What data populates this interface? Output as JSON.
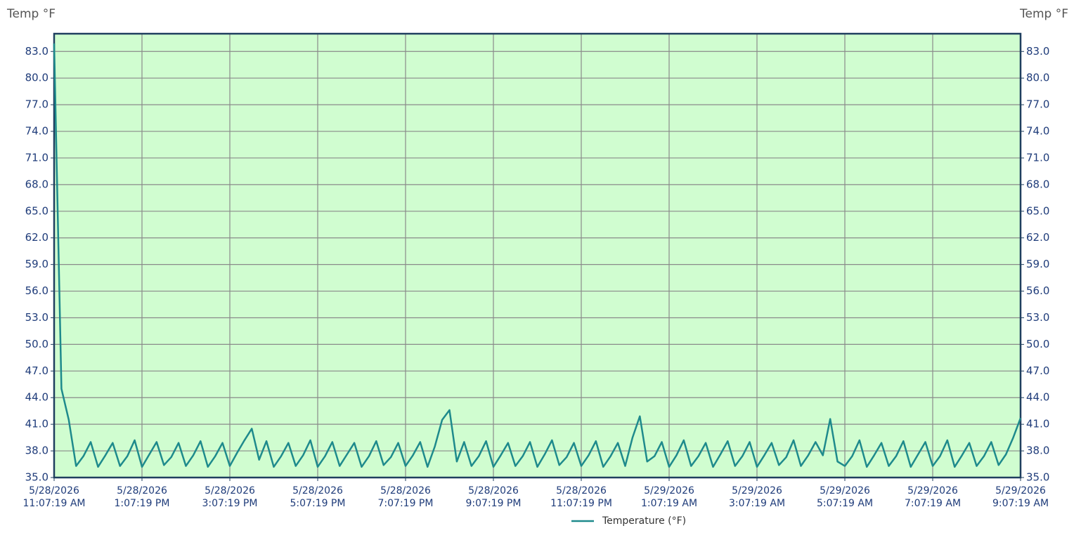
{
  "chart_data": {
    "type": "line",
    "ylabel": "Temp °F",
    "y2label": "Temp °F",
    "x": [
      "2026-05-28T11:07:19",
      "2026-05-28T11:17:19",
      "2026-05-28T11:27:19",
      "2026-05-28T11:37:19",
      "2026-05-28T11:47:19",
      "2026-05-28T11:57:19",
      "2026-05-28T12:07:19",
      "2026-05-28T12:17:19",
      "2026-05-28T12:27:19",
      "2026-05-28T12:37:19",
      "2026-05-28T12:47:19",
      "2026-05-28T12:57:19",
      "2026-05-28T13:07:19",
      "2026-05-28T13:17:19",
      "2026-05-28T13:27:19",
      "2026-05-28T13:37:19",
      "2026-05-28T13:47:19",
      "2026-05-28T13:57:19",
      "2026-05-28T14:07:19",
      "2026-05-28T14:17:19",
      "2026-05-28T14:27:19",
      "2026-05-28T14:37:19",
      "2026-05-28T14:47:19",
      "2026-05-28T14:57:19",
      "2026-05-28T15:07:19",
      "2026-05-28T15:17:19",
      "2026-05-28T15:27:19",
      "2026-05-28T15:37:19",
      "2026-05-28T15:47:19",
      "2026-05-28T15:57:19",
      "2026-05-28T16:07:19",
      "2026-05-28T16:17:19",
      "2026-05-28T16:27:19",
      "2026-05-28T16:37:19",
      "2026-05-28T16:47:19",
      "2026-05-28T16:57:19",
      "2026-05-28T17:07:19",
      "2026-05-28T17:17:19",
      "2026-05-28T17:27:19",
      "2026-05-28T17:37:19",
      "2026-05-28T17:47:19",
      "2026-05-28T17:57:19",
      "2026-05-28T18:07:19",
      "2026-05-28T18:17:19",
      "2026-05-28T18:27:19",
      "2026-05-28T18:37:19",
      "2026-05-28T18:47:19",
      "2026-05-28T18:57:19",
      "2026-05-28T19:07:19",
      "2026-05-28T19:17:19",
      "2026-05-28T19:27:19",
      "2026-05-28T19:37:19",
      "2026-05-28T19:47:19",
      "2026-05-28T19:57:19",
      "2026-05-28T20:07:19",
      "2026-05-28T20:17:19",
      "2026-05-28T20:27:19",
      "2026-05-28T20:37:19",
      "2026-05-28T20:47:19",
      "2026-05-28T20:57:19",
      "2026-05-28T21:07:19",
      "2026-05-28T21:17:19",
      "2026-05-28T21:27:19",
      "2026-05-28T21:37:19",
      "2026-05-28T21:47:19",
      "2026-05-28T21:57:19",
      "2026-05-28T22:07:19",
      "2026-05-28T22:17:19",
      "2026-05-28T22:27:19",
      "2026-05-28T22:37:19",
      "2026-05-28T22:47:19",
      "2026-05-28T22:57:19",
      "2026-05-28T23:07:19",
      "2026-05-28T23:17:19",
      "2026-05-28T23:27:19",
      "2026-05-28T23:37:19",
      "2026-05-28T23:47:19",
      "2026-05-28T23:57:19",
      "2026-05-29T00:07:19",
      "2026-05-29T00:17:19",
      "2026-05-29T00:27:19",
      "2026-05-29T00:37:19",
      "2026-05-29T00:47:19",
      "2026-05-29T00:57:19",
      "2026-05-29T01:07:19",
      "2026-05-29T01:17:19",
      "2026-05-29T01:27:19",
      "2026-05-29T01:37:19",
      "2026-05-29T01:47:19",
      "2026-05-29T01:57:19",
      "2026-05-29T02:07:19",
      "2026-05-29T02:17:19",
      "2026-05-29T02:27:19",
      "2026-05-29T02:37:19",
      "2026-05-29T02:47:19",
      "2026-05-29T02:57:19",
      "2026-05-29T03:07:19",
      "2026-05-29T03:17:19",
      "2026-05-29T03:27:19",
      "2026-05-29T03:37:19",
      "2026-05-29T03:47:19",
      "2026-05-29T03:57:19",
      "2026-05-29T04:07:19",
      "2026-05-29T04:17:19",
      "2026-05-29T04:27:19",
      "2026-05-29T04:37:19",
      "2026-05-29T04:47:19",
      "2026-05-29T04:57:19",
      "2026-05-29T05:07:19",
      "2026-05-29T05:17:19",
      "2026-05-29T05:27:19",
      "2026-05-29T05:37:19",
      "2026-05-29T05:47:19",
      "2026-05-29T05:57:19",
      "2026-05-29T06:07:19",
      "2026-05-29T06:17:19",
      "2026-05-29T06:27:19",
      "2026-05-29T06:37:19",
      "2026-05-29T06:47:19",
      "2026-05-29T06:57:19",
      "2026-05-29T07:07:19",
      "2026-05-29T07:17:19",
      "2026-05-29T07:27:19",
      "2026-05-29T07:37:19",
      "2026-05-29T07:47:19",
      "2026-05-29T07:57:19",
      "2026-05-29T08:07:19",
      "2026-05-29T08:17:19",
      "2026-05-29T08:27:19",
      "2026-05-29T08:37:19",
      "2026-05-29T08:47:19",
      "2026-05-29T08:57:19",
      "2026-05-29T09:07:19"
    ],
    "series": [
      {
        "name": "Temperature (°F)",
        "color": "#1e8a8c",
        "values": [
          83.9,
          45.0,
          41.5,
          36.3,
          37.4,
          39.0,
          36.2,
          37.5,
          38.9,
          36.3,
          37.4,
          39.2,
          36.2,
          37.6,
          39.0,
          36.4,
          37.3,
          38.9,
          36.3,
          37.5,
          39.1,
          36.2,
          37.4,
          38.9,
          36.3,
          37.8,
          39.2,
          40.5,
          37.0,
          39.1,
          36.2,
          37.4,
          38.9,
          36.3,
          37.5,
          39.2,
          36.2,
          37.4,
          39.0,
          36.3,
          37.6,
          38.9,
          36.2,
          37.4,
          39.1,
          36.4,
          37.3,
          38.9,
          36.3,
          37.5,
          39.0,
          36.2,
          38.5,
          41.5,
          42.6,
          36.8,
          39.0,
          36.3,
          37.4,
          39.1,
          36.2,
          37.5,
          38.9,
          36.3,
          37.4,
          39.0,
          36.2,
          37.6,
          39.2,
          36.4,
          37.3,
          38.9,
          36.3,
          37.5,
          39.1,
          36.2,
          37.4,
          38.9,
          36.3,
          39.5,
          41.9,
          36.8,
          37.4,
          39.0,
          36.2,
          37.5,
          39.2,
          36.3,
          37.4,
          38.9,
          36.2,
          37.6,
          39.1,
          36.3,
          37.4,
          39.0,
          36.2,
          37.5,
          38.9,
          36.4,
          37.3,
          39.2,
          36.3,
          37.5,
          39.0,
          37.5,
          41.6,
          36.8,
          36.3,
          37.4,
          39.2,
          36.2,
          37.5,
          38.9,
          36.3,
          37.4,
          39.1,
          36.2,
          37.6,
          39.0,
          36.3,
          37.4,
          39.2,
          36.2,
          37.5,
          38.9,
          36.3,
          37.4,
          39.0,
          36.4,
          37.6,
          39.5,
          41.7
        ]
      }
    ],
    "xlim": [
      "2026-05-28T11:07:19",
      "2026-05-29T09:07:19"
    ],
    "xticks": [
      {
        "value": "2026-05-28T11:07:19",
        "label": [
          "5/28/2026",
          "11:07:19 AM"
        ]
      },
      {
        "value": "2026-05-28T13:07:19",
        "label": [
          "5/28/2026",
          "1:07:19 PM"
        ]
      },
      {
        "value": "2026-05-28T15:07:19",
        "label": [
          "5/28/2026",
          "3:07:19 PM"
        ]
      },
      {
        "value": "2026-05-28T17:07:19",
        "label": [
          "5/28/2026",
          "5:07:19 PM"
        ]
      },
      {
        "value": "2026-05-28T19:07:19",
        "label": [
          "5/28/2026",
          "7:07:19 PM"
        ]
      },
      {
        "value": "2026-05-28T21:07:19",
        "label": [
          "5/28/2026",
          "9:07:19 PM"
        ]
      },
      {
        "value": "2026-05-28T23:07:19",
        "label": [
          "5/28/2026",
          "11:07:19 PM"
        ]
      },
      {
        "value": "2026-05-29T01:07:19",
        "label": [
          "5/29/2026",
          "1:07:19 AM"
        ]
      },
      {
        "value": "2026-05-29T03:07:19",
        "label": [
          "5/29/2026",
          "3:07:19 AM"
        ]
      },
      {
        "value": "2026-05-29T05:07:19",
        "label": [
          "5/29/2026",
          "5:07:19 AM"
        ]
      },
      {
        "value": "2026-05-29T07:07:19",
        "label": [
          "5/29/2026",
          "7:07:19 AM"
        ]
      },
      {
        "value": "2026-05-29T09:07:19",
        "label": [
          "5/29/2026",
          "9:07:19 AM"
        ]
      }
    ],
    "ylim": [
      35,
      85
    ],
    "yticks": [
      {
        "value": 35,
        "label": "35.0"
      },
      {
        "value": 38,
        "label": "38.0"
      },
      {
        "value": 41,
        "label": "41.0"
      },
      {
        "value": 44,
        "label": "44.0"
      },
      {
        "value": 47,
        "label": "47.0"
      },
      {
        "value": 50,
        "label": "50.0"
      },
      {
        "value": 53,
        "label": "53.0"
      },
      {
        "value": 56,
        "label": "56.0"
      },
      {
        "value": 59,
        "label": "59.0"
      },
      {
        "value": 62,
        "label": "62.0"
      },
      {
        "value": 65,
        "label": "65.0"
      },
      {
        "value": 68,
        "label": "68.0"
      },
      {
        "value": 71,
        "label": "71.0"
      },
      {
        "value": 74,
        "label": "74.0"
      },
      {
        "value": 77,
        "label": "77.0"
      },
      {
        "value": 80,
        "label": "80.0"
      },
      {
        "value": 83,
        "label": "83.0"
      }
    ],
    "grid": true,
    "background": "#d0fdd0",
    "legend": "bottom"
  }
}
